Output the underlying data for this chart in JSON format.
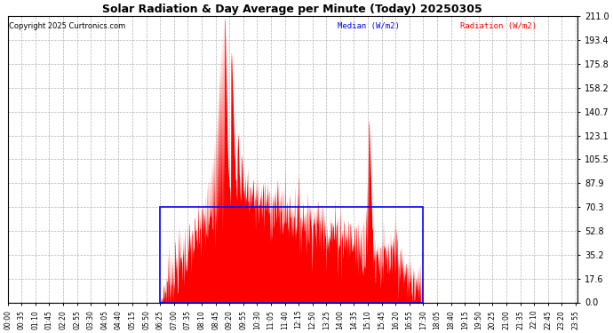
{
  "title": "Solar Radiation & Day Average per Minute (Today) 20250305",
  "copyright": "Copyright 2025 Curtronics.com",
  "legend_median": "Median (W/m2)",
  "legend_radiation": "Radiation (W/m2)",
  "yticks": [
    0.0,
    17.6,
    35.2,
    52.8,
    70.3,
    87.9,
    105.5,
    123.1,
    140.7,
    158.2,
    175.8,
    193.4,
    211.0
  ],
  "ymax": 211.0,
  "ymin": 0.0,
  "median_value": 70.3,
  "median_start_min": 385,
  "median_end_min": 1050,
  "total_minutes": 1440,
  "radiation_color": "#ff0000",
  "median_color": "#0000ff",
  "background_color": "#ffffff",
  "grid_color": "#aaaaaa",
  "box_color": "#0000ff",
  "xtick_labels": [
    "00:00",
    "00:35",
    "01:10",
    "01:45",
    "02:20",
    "02:55",
    "03:30",
    "04:05",
    "04:40",
    "05:15",
    "05:50",
    "06:25",
    "07:00",
    "07:35",
    "08:10",
    "08:45",
    "09:20",
    "09:55",
    "10:30",
    "11:05",
    "11:40",
    "12:15",
    "12:50",
    "13:25",
    "14:00",
    "14:35",
    "15:10",
    "15:45",
    "16:20",
    "16:55",
    "17:30",
    "18:05",
    "18:40",
    "19:15",
    "19:50",
    "20:25",
    "21:00",
    "21:35",
    "22:10",
    "22:45",
    "23:20",
    "23:55"
  ],
  "xtick_positions": [
    0,
    35,
    70,
    105,
    140,
    175,
    210,
    245,
    280,
    315,
    350,
    385,
    420,
    455,
    490,
    525,
    560,
    595,
    630,
    665,
    700,
    735,
    770,
    805,
    840,
    875,
    910,
    945,
    980,
    1015,
    1050,
    1085,
    1120,
    1155,
    1190,
    1225,
    1260,
    1295,
    1330,
    1365,
    1400,
    1435
  ],
  "sunrise": 385,
  "sunset": 1050,
  "figwidth": 6.9,
  "figheight": 3.75,
  "dpi": 100
}
